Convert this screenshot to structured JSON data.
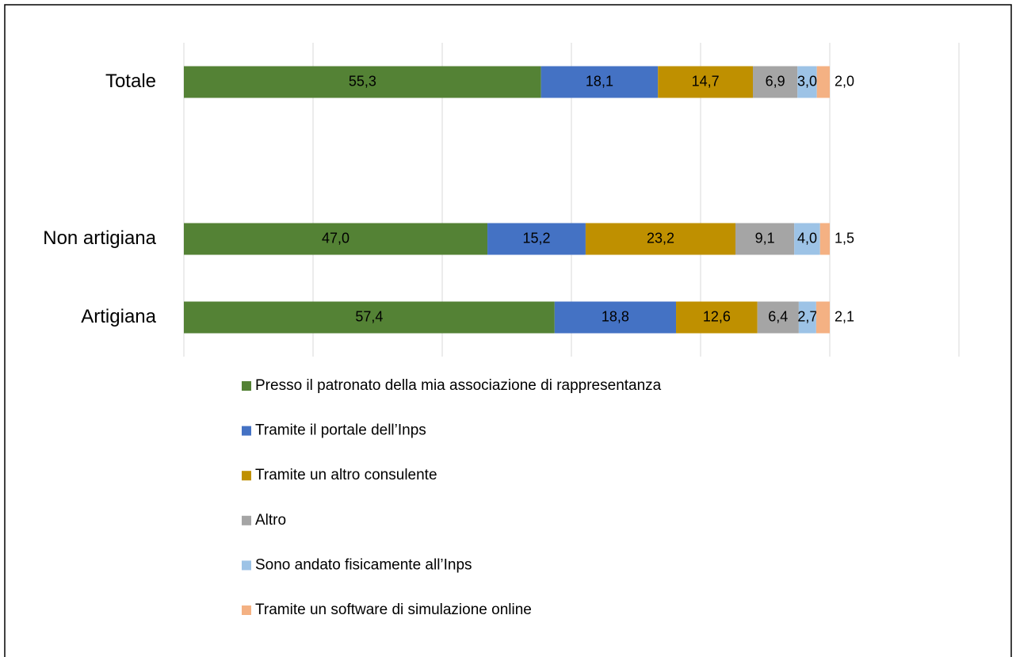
{
  "chart_data": {
    "type": "stacked_barh",
    "categories": [
      "Totale",
      null,
      "Non artigiana",
      "Artigiana"
    ],
    "series": [
      {
        "name": "Presso il patronato della mia associazione di rappresentanza",
        "color": "#548235",
        "values": [
          55.3,
          null,
          47.0,
          57.4
        ],
        "value_labels": [
          "55,3",
          null,
          "47,0",
          "57,4"
        ]
      },
      {
        "name": "Tramite il portale dell’Inps",
        "color": "#4472c4",
        "values": [
          18.1,
          null,
          15.2,
          18.8
        ],
        "value_labels": [
          "18,1",
          null,
          "15,2",
          "18,8"
        ]
      },
      {
        "name": "Tramite un altro consulente",
        "color": "#bf9000",
        "values": [
          14.7,
          null,
          23.2,
          12.6
        ],
        "value_labels": [
          "14,7",
          null,
          "23,2",
          "12,6"
        ]
      },
      {
        "name": "Altro",
        "color": "#a5a5a5",
        "values": [
          6.9,
          null,
          9.1,
          6.4
        ],
        "value_labels": [
          "6,9",
          null,
          "9,1",
          "6,4"
        ]
      },
      {
        "name": "Sono andato fisicamente all’Inps",
        "color": "#9dc3e6",
        "values": [
          3.0,
          null,
          4.0,
          2.7
        ],
        "value_labels": [
          "3,0",
          null,
          "4,0",
          "2,7"
        ]
      },
      {
        "name": "Tramite un software di simulazione online",
        "color": "#f4b183",
        "values": [
          2.0,
          null,
          1.5,
          2.1
        ],
        "value_labels": [
          "2,0",
          null,
          "1,5",
          "2,1"
        ]
      }
    ],
    "xlim": [
      0,
      120
    ],
    "xticks": [
      0,
      20,
      40,
      60,
      80,
      100,
      120
    ],
    "grid": true,
    "legend": "bottom"
  }
}
